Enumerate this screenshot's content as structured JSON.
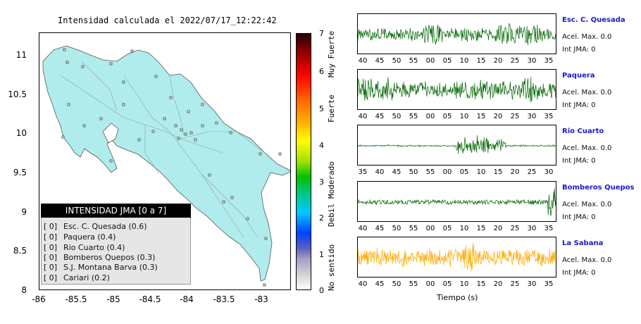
{
  "map": {
    "title": "Intensidad calculada el 2022/07/17_12:22:42",
    "y_ticks": [
      "11",
      "10.5",
      "10",
      "9.5",
      "9",
      "8.5",
      "8"
    ],
    "x_ticks": [
      "-86",
      "-85.5",
      "-85",
      "-84.5",
      "-84",
      "-83.5",
      "-83"
    ],
    "land_color": "#b0ecec",
    "legend": {
      "header": "INTENSIDAD JMA [0 a 7]",
      "rows": [
        {
          "tag": "[ 0]",
          "text": "Esc. C. Quesada (0.6)"
        },
        {
          "tag": "[ 0]",
          "text": "Paquera (0.4)"
        },
        {
          "tag": "[ 0]",
          "text": "Rio Cuarto (0.4)"
        },
        {
          "tag": "[ 0]",
          "text": "Bomberos Quepos (0.3)"
        },
        {
          "tag": "[ 0]",
          "text": "S.J. Montana Barva (0.3)"
        },
        {
          "tag": "[ 0]",
          "text": "Cariari (0.2)"
        }
      ]
    }
  },
  "colorbar": {
    "ticks": [
      "7",
      "6",
      "5",
      "4",
      "3",
      "2",
      "1",
      "0"
    ],
    "labels": [
      "Muy Fuerte",
      "Fuerte",
      "Moderado",
      "Debil",
      "No sentido"
    ]
  },
  "traces": [
    {
      "name": "Esc. C. Quesada",
      "acel": "Acel. Max. 0.0",
      "int": "Int JMA: 0",
      "color": "#006400",
      "ticks": [
        "40",
        "45",
        "50",
        "55",
        "00",
        "05",
        "10",
        "15",
        "20",
        "25",
        "30",
        "35"
      ],
      "offset": 0
    },
    {
      "name": "Paquera",
      "acel": "Acel. Max. 0.0",
      "int": "Int JMA: 0",
      "color": "#006400",
      "ticks": [
        "40",
        "45",
        "50",
        "55",
        "00",
        "05",
        "10",
        "15",
        "20",
        "25",
        "30",
        "35"
      ],
      "offset": 0
    },
    {
      "name": "Rio Cuarto",
      "acel": "Acel. Max. 0.0",
      "int": "Int JMA: 0",
      "color": "#006400",
      "ticks": [
        "35",
        "40",
        "45",
        "50",
        "55",
        "00",
        "05",
        "10",
        "15",
        "20",
        "25",
        "30"
      ],
      "offset": 0
    },
    {
      "name": "Bomberos Quepos",
      "acel": "Acel. Max. 0.0",
      "int": "Int JMA: 0",
      "color": "#006400",
      "ticks": [
        "40",
        "45",
        "50",
        "55",
        "00",
        "05",
        "10",
        "15",
        "20",
        "25",
        "30",
        "35"
      ],
      "offset": 0
    },
    {
      "name": "La Sabana",
      "acel": "Acel. Max. 0.0",
      "int": "Int JMA: 0",
      "color": "#ffaa00",
      "ticks": [
        "40",
        "45",
        "50",
        "55",
        "00",
        "05",
        "10",
        "15",
        "20",
        "25",
        "30",
        "35"
      ],
      "offset": 0
    }
  ],
  "time_axis_label": "Tiempo (s)"
}
